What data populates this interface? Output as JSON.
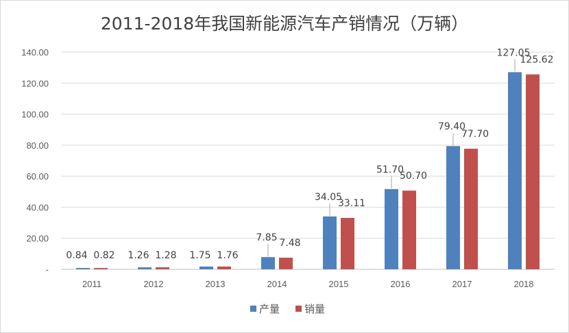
{
  "chart_data": {
    "type": "bar",
    "title": "2011-2018年我国新能源汽车产销情况（万辆）",
    "categories": [
      "2011",
      "2012",
      "2013",
      "2014",
      "2015",
      "2016",
      "2017",
      "2018"
    ],
    "series": [
      {
        "name": "产量",
        "values": [
          0.84,
          1.26,
          1.75,
          7.85,
          34.05,
          51.7,
          79.4,
          127.05
        ],
        "labels": [
          "0.84",
          "1.26",
          "1.75",
          "7.85",
          "34.05",
          "51.70",
          "79.40",
          "127.05"
        ],
        "color": "#4f81bd"
      },
      {
        "name": "销量",
        "values": [
          0.82,
          1.28,
          1.76,
          7.48,
          33.11,
          50.7,
          77.7,
          125.62
        ],
        "labels": [
          "0.82",
          "1.28",
          "1.76",
          "7.48",
          "33.11",
          "50.70",
          "77.70",
          "125.62"
        ],
        "color": "#c0504d"
      }
    ],
    "ylim": [
      0,
      140
    ],
    "yticks": [
      "-",
      "20.00",
      "40.00",
      "60.00",
      "80.00",
      "100.00",
      "120.00",
      "140.00"
    ],
    "grid": true,
    "legend_position": "bottom"
  }
}
